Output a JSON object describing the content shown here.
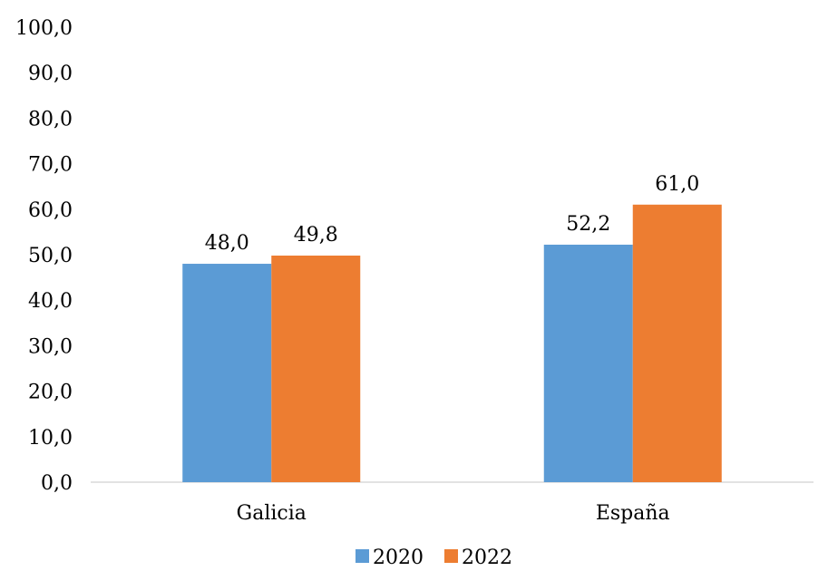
{
  "chart_data": {
    "type": "bar",
    "categories": [
      "Galicia",
      "España"
    ],
    "series": [
      {
        "name": "2020",
        "values": [
          48.0,
          52.2
        ],
        "labels": [
          "48,0",
          "52,2"
        ],
        "color": "#5B9BD5"
      },
      {
        "name": "2022",
        "values": [
          49.8,
          61.0
        ],
        "labels": [
          "49,8",
          "61,0"
        ],
        "color": "#ED7D31"
      }
    ],
    "ylim": [
      0,
      100
    ],
    "yticks": [
      "0,0",
      "10,0",
      "20,0",
      "30,0",
      "40,0",
      "50,0",
      "60,0",
      "70,0",
      "80,0",
      "90,0",
      "100,0"
    ],
    "grid": false,
    "legend_position": "bottom",
    "title": "",
    "xlabel": "",
    "ylabel": ""
  }
}
